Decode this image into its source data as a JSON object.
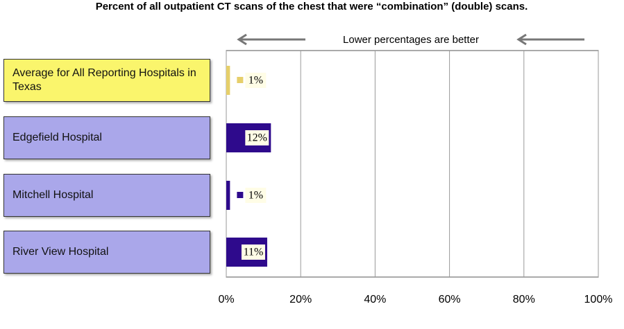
{
  "chart_data": {
    "type": "hbar",
    "title": "Percent of all outpatient CT scans of the chest that were “combination” (double) scans.",
    "annotation": "Lower percentages are better",
    "categories": [
      "Average for All Reporting Hospitals in Texas",
      "Edgefield Hospital",
      "Mitchell Hospital",
      "River View Hospital"
    ],
    "values": [
      1,
      12,
      1,
      11
    ],
    "value_labels": [
      "1%",
      "12%",
      "1%",
      "11%"
    ],
    "colors": [
      "#e6cf6a",
      "#2e0a8c",
      "#2e0a8c",
      "#2e0a8c"
    ],
    "label_box_colors": [
      "#faf56c",
      "#aaa7ea",
      "#aaa7ea",
      "#aaa7ea"
    ],
    "xlim": [
      0,
      100
    ],
    "xticks": [
      {
        "value": 0,
        "label": "0%"
      },
      {
        "value": 20,
        "label": "20%"
      },
      {
        "value": 40,
        "label": "40%"
      },
      {
        "value": 60,
        "label": "60%"
      },
      {
        "value": 80,
        "label": "80%"
      },
      {
        "value": 100,
        "label": "100%"
      }
    ],
    "grid": true
  }
}
